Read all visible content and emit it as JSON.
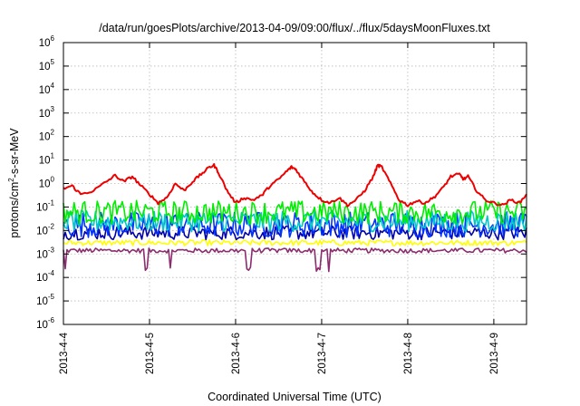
{
  "chart_data": {
    "type": "line",
    "title": "/data/run/goesPlots/archive/2013-04-09/09:00/flux/../flux/5daysMoonFluxes.txt",
    "xlabel": "Coordinated Universal Time (UTC)",
    "ylabel": "protons/cm2-s-sr-MeV",
    "ylabel_parts": {
      "main": "protons/cm",
      "sup": "2",
      "rest": "-s-sr-MeV"
    },
    "y_scale": "log",
    "ylim_exponents": [
      -6,
      6
    ],
    "y_ticks": [
      {
        "base": "10",
        "exp": "6"
      },
      {
        "base": "10",
        "exp": "5"
      },
      {
        "base": "10",
        "exp": "4"
      },
      {
        "base": "10",
        "exp": "3"
      },
      {
        "base": "10",
        "exp": "2"
      },
      {
        "base": "10",
        "exp": "1"
      },
      {
        "base": "10",
        "exp": "0"
      },
      {
        "base": "10",
        "exp": "-1"
      },
      {
        "base": "10",
        "exp": "-2"
      },
      {
        "base": "10",
        "exp": "-3"
      },
      {
        "base": "10",
        "exp": "-4"
      },
      {
        "base": "10",
        "exp": "-5"
      },
      {
        "base": "10",
        "exp": "-6"
      }
    ],
    "x_ticks": [
      "2013-4-4",
      "2013-4-5",
      "2013-4-6",
      "2013-4-7",
      "2013-4-8",
      "2013-4-9"
    ],
    "xlim_days": [
      0,
      5.38
    ],
    "grid": true,
    "legend": "none",
    "series": [
      {
        "color": "#ee0000",
        "x": [
          0,
          0.1,
          0.2,
          0.35,
          0.5,
          0.6,
          0.7,
          0.8,
          0.9,
          1.0,
          1.1,
          1.2,
          1.3,
          1.4,
          1.5,
          1.6,
          1.7,
          1.75,
          1.8,
          1.9,
          2.0,
          2.1,
          2.2,
          2.3,
          2.4,
          2.5,
          2.6,
          2.65,
          2.7,
          2.8,
          2.9,
          3.0,
          3.1,
          3.2,
          3.3,
          3.4,
          3.5,
          3.6,
          3.65,
          3.7,
          3.8,
          3.9,
          4.0,
          4.1,
          4.2,
          4.3,
          4.4,
          4.5,
          4.6,
          4.65,
          4.7,
          4.8,
          4.9,
          5.0,
          5.1,
          5.2,
          5.3,
          5.38
        ],
        "y": [
          0.6,
          0.8,
          0.35,
          0.5,
          1.2,
          2.2,
          1.2,
          2.0,
          0.8,
          0.35,
          0.15,
          0.25,
          1.0,
          0.5,
          1.2,
          2.5,
          5.0,
          6.0,
          3.0,
          0.5,
          0.15,
          0.25,
          0.2,
          0.3,
          0.8,
          1.5,
          3.5,
          5.0,
          4.0,
          1.2,
          0.4,
          0.2,
          0.15,
          0.25,
          0.12,
          0.2,
          0.5,
          2.0,
          6.0,
          5.0,
          1.0,
          0.2,
          0.12,
          0.18,
          0.15,
          0.25,
          0.6,
          2.0,
          2.5,
          1.5,
          2.0,
          0.5,
          0.2,
          0.15,
          0.12,
          0.2,
          0.15,
          0.35
        ]
      },
      {
        "color": "#00ee00",
        "center": 0.06,
        "spread": 0.5
      },
      {
        "color": "#00c8c8",
        "center": 0.025,
        "spread": 0.45
      },
      {
        "color": "#0033ff",
        "center": 0.018,
        "spread": 0.55
      },
      {
        "color": "#0000aa",
        "center": 0.008,
        "spread": 0.3
      },
      {
        "color": "#ffff00",
        "center": 0.003,
        "spread": 0.12
      },
      {
        "color": "#8b2c6e",
        "center": 0.0014,
        "spread": 0.1
      }
    ]
  }
}
